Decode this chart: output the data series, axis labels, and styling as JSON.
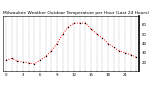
{
  "title": "Milwaukee Weather Outdoor Temperature per Hour (Last 24 Hours)",
  "hours": [
    0,
    1,
    2,
    3,
    4,
    5,
    6,
    7,
    8,
    9,
    10,
    11,
    12,
    13,
    14,
    15,
    16,
    17,
    18,
    19,
    20,
    21,
    22,
    23
  ],
  "temps": [
    22,
    24,
    21,
    20,
    19,
    18,
    22,
    26,
    32,
    40,
    50,
    58,
    62,
    62,
    62,
    56,
    50,
    46,
    40,
    36,
    32,
    30,
    28,
    25
  ],
  "line_color": "#ff0000",
  "marker_color": "#000000",
  "bg_color": "#ffffff",
  "grid_color": "#888888",
  "title_color": "#000000",
  "ylim": [
    10,
    70
  ],
  "ytick_values": [
    20,
    30,
    40,
    50,
    60
  ],
  "ytick_labels": [
    "20",
    "30",
    "40",
    "50",
    "60"
  ],
  "title_fontsize": 3.2,
  "tick_fontsize": 2.8,
  "linewidth": 0.7,
  "markersize": 1.0
}
